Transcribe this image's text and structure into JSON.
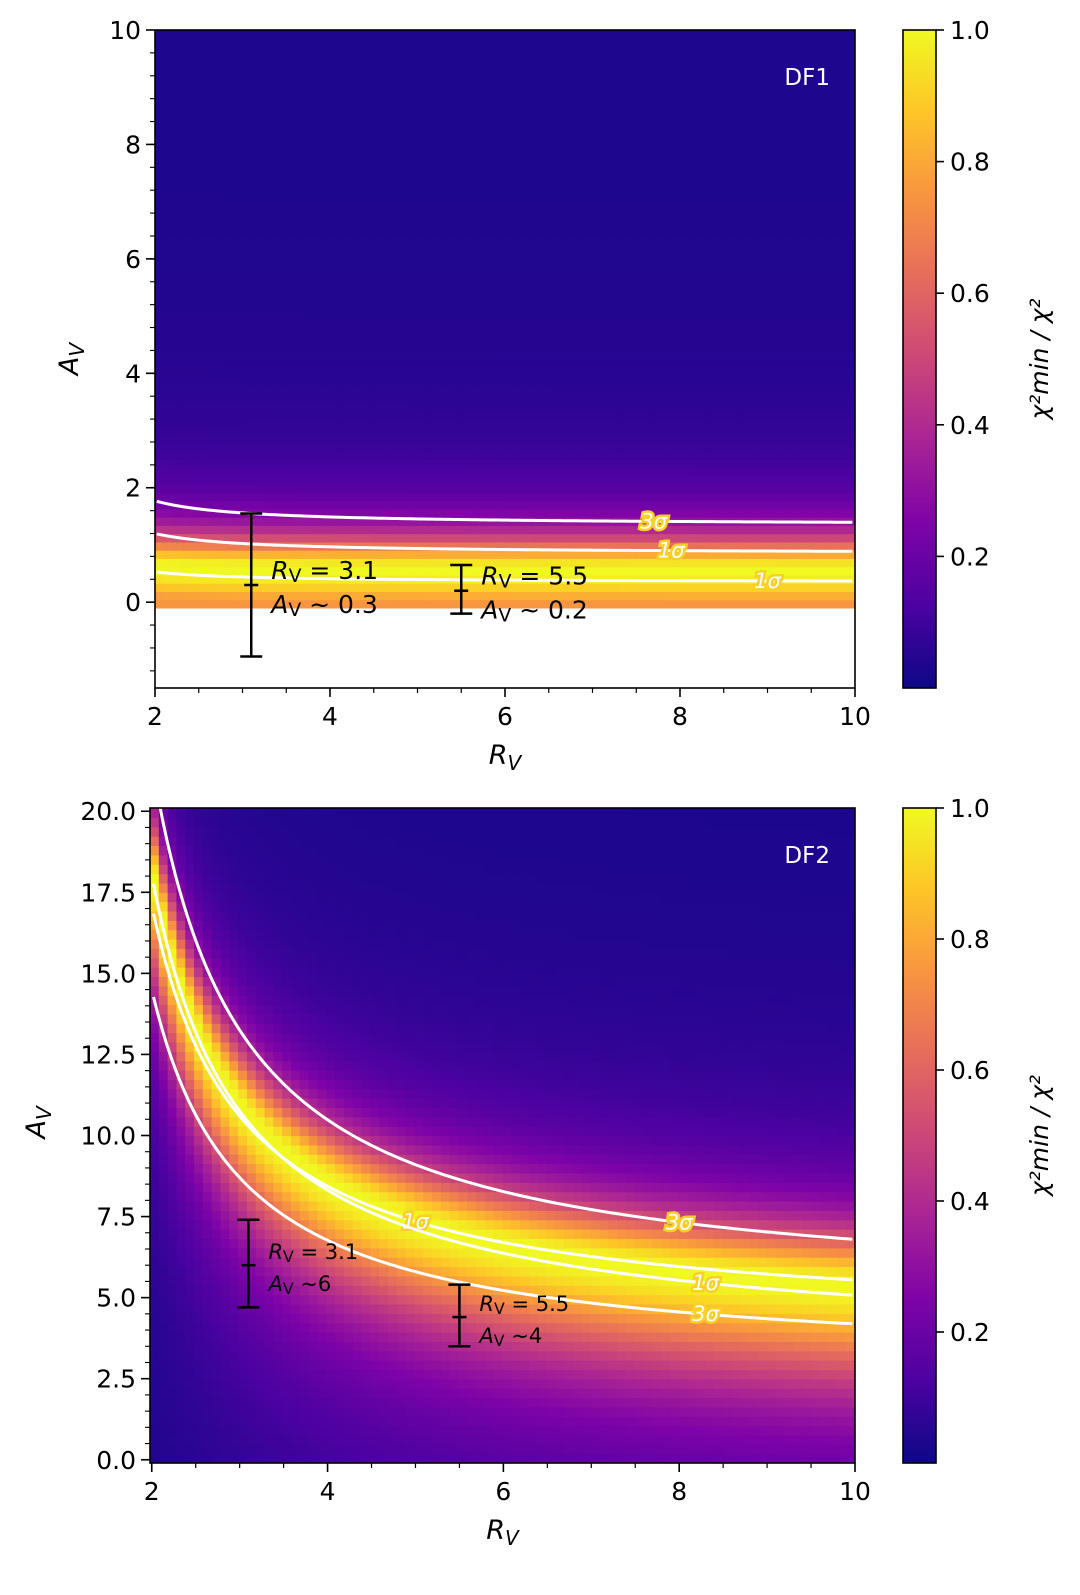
{
  "chart_data": [
    {
      "type": "heatmap",
      "panel_label": "DF1",
      "xlabel": "R",
      "xlabel_sub": "V",
      "ylabel": "A",
      "ylabel_sub": "V",
      "xlim": [
        2,
        10
      ],
      "ylim": [
        -1.5,
        10
      ],
      "data_ymin": -0.1,
      "x_ticks": [
        2,
        4,
        6,
        8,
        10
      ],
      "x_tick_labels": [
        "2",
        "4",
        "6",
        "8",
        "10"
      ],
      "y_ticks": [
        0,
        2,
        4,
        6,
        8,
        10
      ],
      "y_tick_labels": [
        "0",
        "2",
        "4",
        "6",
        "8",
        "10"
      ],
      "colorbar": {
        "label": "χ²min / χ²",
        "ticks": [
          0.2,
          0.4,
          0.6,
          0.8,
          1.0
        ],
        "tick_labels": [
          "0.2",
          "0.4",
          "0.6",
          "0.8",
          "1.0"
        ],
        "range": [
          0.0,
          1.0
        ]
      },
      "ridge": {
        "c": 0.55,
        "k": 0.08,
        "width": 0.55,
        "floor": 0.03
      },
      "contours": [
        {
          "label": "3σ",
          "c": 1.35,
          "k": 0.42,
          "label_at_x": 7.7
        },
        {
          "label": "1σ",
          "c": 0.85,
          "k": 0.35,
          "label_at_x": 7.9
        },
        {
          "label": "1σ",
          "c": 0.35,
          "k": 0.18,
          "label_at_x": 9.0
        }
      ],
      "error_bars": [
        {
          "x": 3.1,
          "y": 0.3,
          "ylow": -0.95,
          "yhigh": 1.55,
          "text_line1": "= 3.1",
          "text_line2": "~ 0.3"
        },
        {
          "x": 5.5,
          "y": 0.2,
          "ylow": -0.2,
          "yhigh": 0.65,
          "text_line1": "= 5.5",
          "text_line2": "~ 0.2"
        }
      ]
    },
    {
      "type": "heatmap",
      "panel_label": "DF2",
      "xlabel": "R",
      "xlabel_sub": "V",
      "ylabel": "A",
      "ylabel_sub": "V",
      "xlim": [
        1.98,
        10
      ],
      "ylim": [
        -0.1,
        20.1
      ],
      "data_ymin": -0.1,
      "x_ticks": [
        2,
        4,
        6,
        8,
        10
      ],
      "x_tick_labels": [
        "2",
        "4",
        "6",
        "8",
        "10"
      ],
      "y_ticks": [
        0,
        2.5,
        5,
        7.5,
        10,
        12.5,
        15,
        17.5,
        20
      ],
      "y_tick_labels": [
        "0.0",
        "2.5",
        "5.0",
        "7.5",
        "10.0",
        "12.5",
        "15.0",
        "17.5",
        "20.0"
      ],
      "colorbar": {
        "label": "χ²min / χ²",
        "ticks": [
          0.2,
          0.4,
          0.6,
          0.8,
          1.0
        ],
        "tick_labels": [
          "0.2",
          "0.4",
          "0.6",
          "0.8",
          "1.0"
        ],
        "range": [
          0.0,
          1.0
        ]
      },
      "ridge": {
        "c": 3.75,
        "k": 14.5,
        "width": 1.6,
        "floor": 0.02
      },
      "contours": [
        {
          "label": "3σ",
          "c": 4.95,
          "k": 16.6,
          "label_at_x": 8.0
        },
        {
          "label": "1σ",
          "c": 4.1,
          "k": 13.0,
          "label_at_x": 5.0
        },
        {
          "label": "1σ",
          "c": 3.45,
          "k": 14.6,
          "label_at_x": 8.3
        },
        {
          "label": "3σ",
          "c": 2.9,
          "k": 11.6,
          "label_at_x": 8.3
        }
      ],
      "error_bars": [
        {
          "x": 3.1,
          "y": 6.0,
          "ylow": 4.7,
          "yhigh": 7.4,
          "text_line1": "= 3.1",
          "text_line2": "~6"
        },
        {
          "x": 5.5,
          "y": 4.4,
          "ylow": 3.5,
          "yhigh": 5.4,
          "text_line1": "= 5.5",
          "text_line2": "~4"
        }
      ]
    }
  ]
}
